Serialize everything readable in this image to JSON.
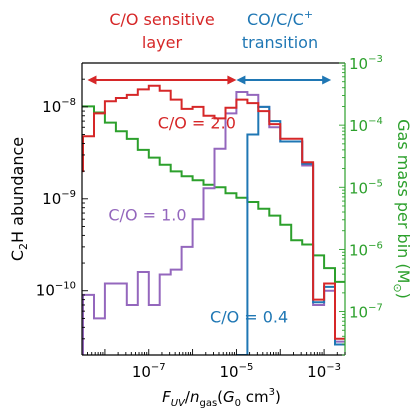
{
  "chart_data": {
    "type": "line",
    "step": true,
    "x_scale": "log",
    "y_scale": "log",
    "y2_scale": "log",
    "xlabel": "F_UV/n_gas(G_0 cm^3)",
    "xlabel_parts": [
      "F",
      "UV",
      "/",
      "n",
      "gas",
      "(",
      "G",
      "0",
      " cm",
      "3",
      ")"
    ],
    "ylabel": "C2H abundance",
    "ylabel_parts": [
      "C",
      "2",
      "H abundance"
    ],
    "y2label": "Gas mass per bin (M⊙)",
    "y2label_parts": [
      "Gas mass per bin (M",
      "⊙",
      ")"
    ],
    "xlim": [
      3e-09,
      0.003
    ],
    "ylim": [
      2e-11,
      3e-08
    ],
    "y2lim": [
      2e-08,
      0.001
    ],
    "xticks": [
      {
        "value": 1e-07,
        "base": "10",
        "exp": "−7"
      },
      {
        "value": 1e-05,
        "base": "10",
        "exp": "−5"
      },
      {
        "value": 0.001,
        "base": "10",
        "exp": "−3"
      }
    ],
    "yticks": [
      {
        "value": 1e-10,
        "base": "10",
        "exp": "−10"
      },
      {
        "value": 1e-09,
        "base": "10",
        "exp": "−9"
      },
      {
        "value": 1e-08,
        "base": "10",
        "exp": "−8"
      }
    ],
    "y2ticks": [
      {
        "value": 1e-07,
        "base": "10",
        "exp": "−7"
      },
      {
        "value": 1e-06,
        "base": "10",
        "exp": "−6"
      },
      {
        "value": 1e-05,
        "base": "10",
        "exp": "−5"
      },
      {
        "value": 0.0001,
        "base": "10",
        "exp": "−4"
      },
      {
        "value": 0.001,
        "base": "10",
        "exp": "−3"
      }
    ],
    "bin_edges_log10": [
      -8.75,
      -8.5,
      -8.25,
      -8.0,
      -7.75,
      -7.5,
      -7.25,
      -7.0,
      -6.75,
      -6.5,
      -6.25,
      -6.0,
      -5.75,
      -5.5,
      -5.25,
      -5.0,
      -4.75,
      -4.5,
      -4.25,
      -4.0,
      -3.75,
      -3.5,
      -3.25,
      -3.0,
      -2.75,
      -2.5
    ],
    "series": [
      {
        "axis": "left",
        "color": "#d62728",
        "values": [
          2e-09,
          4.8e-09,
          8.5e-09,
          1.15e-08,
          1.25e-08,
          1.35e-08,
          1.55e-08,
          1.7e-08,
          1.5e-08,
          1.2e-08,
          9.5e-09,
          1e-08,
          8e-09,
          7.5e-09,
          9.8e-09,
          1.2e-08,
          1.1e-08,
          9e-09,
          6.5e-09,
          4.5e-09,
          4.5e-09,
          2.5e-09,
          8e-11,
          1.2e-10,
          3e-11
        ]
      },
      {
        "axis": "left",
        "color": "#9467bd",
        "values": [
          null,
          9e-11,
          5e-11,
          1.2e-10,
          1.2e-10,
          7e-11,
          1.6e-10,
          7e-11,
          1.5e-10,
          1.7e-10,
          3e-10,
          6e-10,
          1.3e-09,
          3.5e-09,
          8.5e-09,
          1.45e-08,
          1.35e-08,
          1e-08,
          6e-09,
          4.2e-09,
          4.2e-09,
          2.3e-09,
          7e-11,
          1e-10,
          2.8e-11
        ]
      },
      {
        "axis": "left",
        "color": "#1f77b4",
        "values": [
          null,
          null,
          null,
          null,
          null,
          null,
          null,
          null,
          null,
          null,
          null,
          null,
          null,
          null,
          null,
          2e-11,
          5e-09,
          1e-08,
          7e-09,
          4.2e-09,
          4.2e-09,
          2.4e-09,
          7.5e-11,
          1.1e-10,
          2.6e-11
        ]
      },
      {
        "axis": "right",
        "color": "#2ca02c",
        "values": [
          0.0002,
          0.0002,
          0.00016,
          0.00011,
          8e-05,
          6e-05,
          4e-05,
          3e-05,
          2.3e-05,
          1.8e-05,
          1.5e-05,
          1.3e-05,
          1.1e-05,
          1e-05,
          8e-06,
          6.8e-06,
          5.8e-06,
          4.5e-06,
          3.5e-06,
          2.5e-06,
          1.4e-06,
          1.2e-06,
          8e-07,
          5e-07,
          3e-07
        ]
      }
    ],
    "annotations": [
      {
        "text": "C/O = 2.0",
        "color": "#d62728",
        "x": 1.6e-07,
        "y": 5.8e-09
      },
      {
        "text": "C/O = 1.0",
        "color": "#9467bd",
        "x": 1.2e-08,
        "y": 5.8e-10
      },
      {
        "text": "C/O = 0.4",
        "color": "#1f77b4",
        "x": 2.5e-06,
        "y": 4.5e-11
      }
    ],
    "top_labels": [
      {
        "lines": [
          "C/O sensitive",
          "layer"
        ],
        "color": "#d62728"
      },
      {
        "lines": [
          "CO/C/C",
          "transition"
        ],
        "sup": "+",
        "color": "#1f77b4"
      }
    ],
    "range_arrows": [
      {
        "from": 4e-09,
        "to": 1e-05,
        "color": "#d62728"
      },
      {
        "from": 1e-05,
        "to": 0.00145,
        "color": "#1f77b4"
      }
    ],
    "axis_colors": {
      "left": "#000000",
      "right": "#2ca02c"
    },
    "grid": false
  }
}
